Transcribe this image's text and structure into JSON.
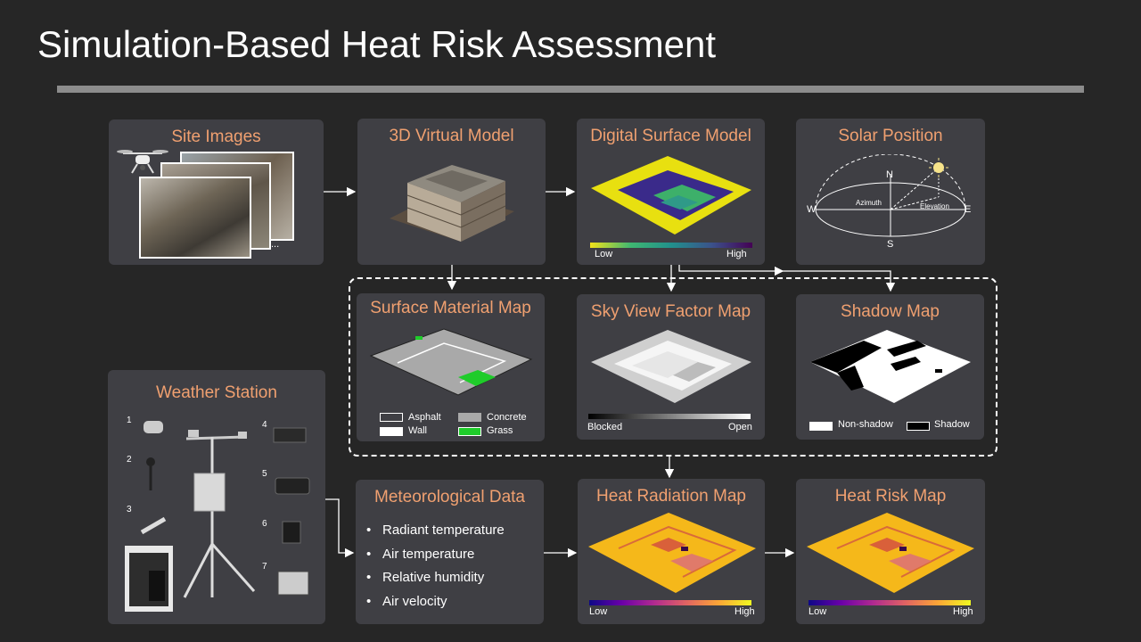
{
  "title": "Simulation-Based Heat Risk Assessment",
  "site_images": {
    "title": "Site Images",
    "ellipsis": "..."
  },
  "virtual_model": {
    "title": "3D Virtual Model"
  },
  "dsm": {
    "title": "Digital Surface Model",
    "low": "Low",
    "high": "High"
  },
  "solar": {
    "title": "Solar Position",
    "n": "N",
    "s": "S",
    "w": "W",
    "e": "E",
    "azimuth": "Azimuth",
    "elevation": "Elevation"
  },
  "surface_material": {
    "title": "Surface Material Map",
    "asphalt": "Asphalt",
    "concrete": "Concrete",
    "wall": "Wall",
    "grass": "Grass"
  },
  "sky_view": {
    "title": "Sky View Factor Map",
    "blocked": "Blocked",
    "open": "Open"
  },
  "shadow": {
    "title": "Shadow Map",
    "non_shadow": "Non-shadow",
    "shadow": "Shadow"
  },
  "weather": {
    "title": "Weather Station",
    "labels": [
      "1",
      "2",
      "3",
      "4",
      "5",
      "6",
      "7"
    ]
  },
  "meteorological": {
    "title": "Meteorological Data",
    "items": [
      "Radiant temperature",
      "Air temperature",
      "Relative humidity",
      "Air velocity"
    ]
  },
  "heat_radiation": {
    "title": "Heat Radiation Map",
    "low": "Low",
    "high": "High"
  },
  "heat_risk": {
    "title": "Heat Risk Map",
    "low": "Low",
    "high": "High"
  },
  "colors": {
    "accent": "#f0a070",
    "panel": "#3f3f44",
    "background": "#262626"
  }
}
